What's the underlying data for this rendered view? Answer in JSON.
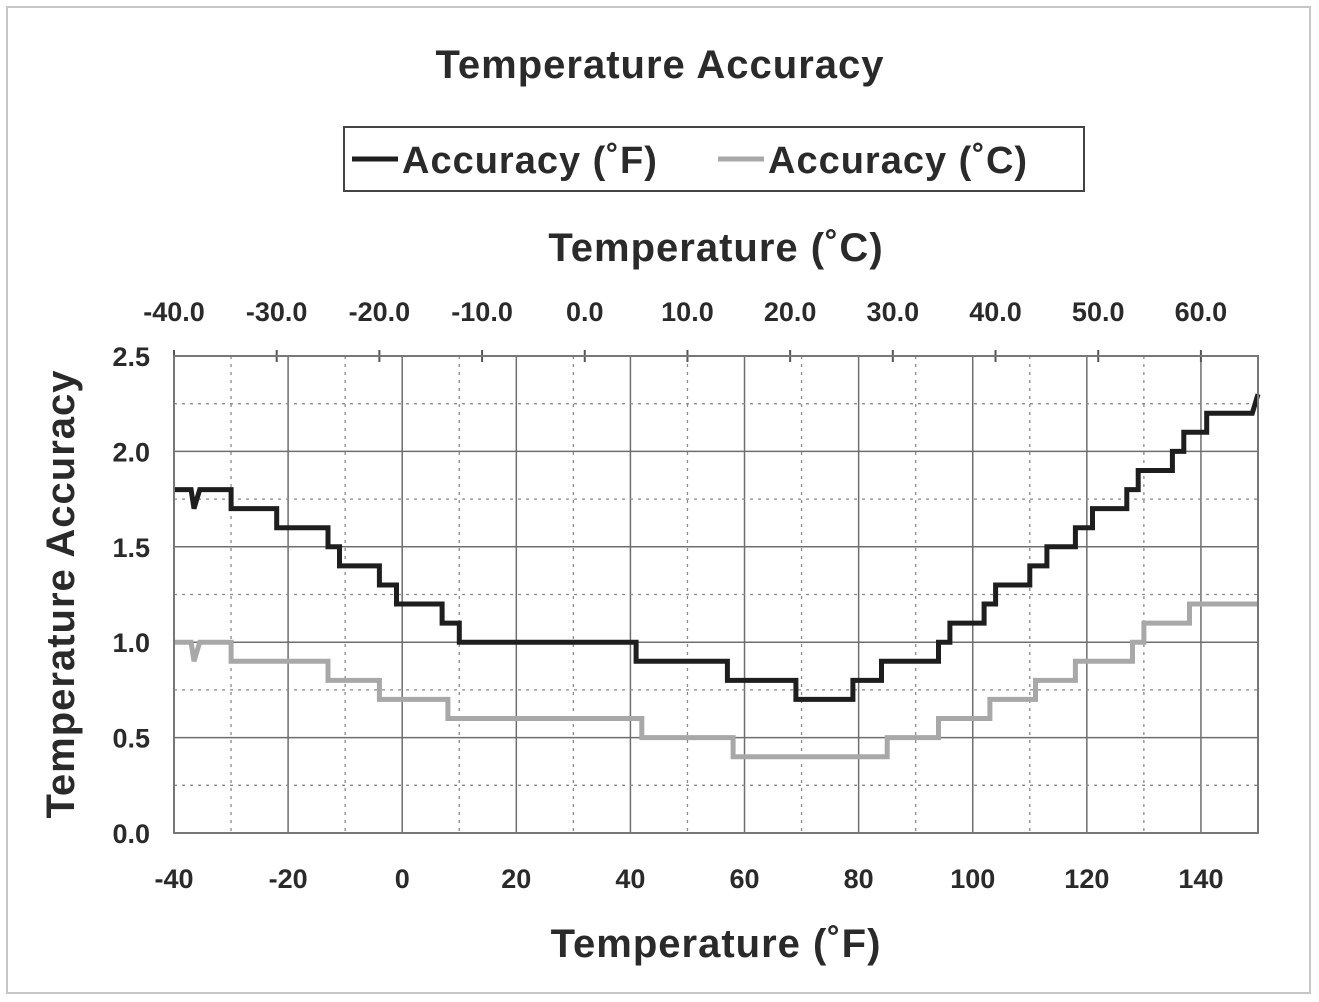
{
  "chart_data": {
    "type": "line",
    "title": "Temperature Accuracy",
    "xlabel": "Temperature (˚F)",
    "x2label": "Temperature (˚C)",
    "ylabel": "Temperature Accuracy",
    "xlim": [
      -40,
      150
    ],
    "ylim": [
      0,
      2.5
    ],
    "x2lim": [
      -40,
      65.56
    ],
    "xticks": [
      -40,
      -20,
      0,
      20,
      40,
      60,
      80,
      100,
      120,
      140
    ],
    "x2ticks": [
      -40,
      -30,
      -20,
      -10,
      0,
      10,
      20,
      30,
      40,
      50,
      60
    ],
    "yticks": [
      0,
      0.5,
      1.0,
      1.5,
      2.0,
      2.5
    ],
    "xtick_labels": [
      "-40",
      "-20",
      "0",
      "20",
      "40",
      "60",
      "80",
      "100",
      "120",
      "140"
    ],
    "x2tick_labels": [
      "-40.0",
      "-30.0",
      "-20.0",
      "-10.0",
      "0.0",
      "10.0",
      "20.0",
      "30.0",
      "40.0",
      "50.0",
      "60.0"
    ],
    "ytick_labels": [
      "0.0",
      "0.5",
      "1.0",
      "1.5",
      "2.0",
      "2.5"
    ],
    "grid": "major solid, minor dotted",
    "legend_position": "top",
    "series": [
      {
        "name": "Accuracy (˚F)",
        "color": "#1e1e1e",
        "points": [
          [
            -40,
            1.8
          ],
          [
            -37,
            1.8
          ],
          [
            -36.5,
            1.7
          ],
          [
            -35.5,
            1.8
          ],
          [
            -30,
            1.8
          ],
          [
            -30,
            1.7
          ],
          [
            -22,
            1.7
          ],
          [
            -22,
            1.6
          ],
          [
            -13,
            1.6
          ],
          [
            -13,
            1.5
          ],
          [
            -11,
            1.5
          ],
          [
            -11,
            1.4
          ],
          [
            -4,
            1.4
          ],
          [
            -4,
            1.3
          ],
          [
            -1,
            1.3
          ],
          [
            -1,
            1.2
          ],
          [
            7,
            1.2
          ],
          [
            7,
            1.1
          ],
          [
            10,
            1.1
          ],
          [
            10,
            1.0
          ],
          [
            41,
            1.0
          ],
          [
            41,
            0.9
          ],
          [
            57,
            0.9
          ],
          [
            57,
            0.8
          ],
          [
            69,
            0.8
          ],
          [
            69,
            0.7
          ],
          [
            79,
            0.7
          ],
          [
            79,
            0.8
          ],
          [
            84,
            0.8
          ],
          [
            84,
            0.9
          ],
          [
            94,
            0.9
          ],
          [
            94,
            1.0
          ],
          [
            96,
            1.0
          ],
          [
            96,
            1.1
          ],
          [
            102,
            1.1
          ],
          [
            102,
            1.2
          ],
          [
            104,
            1.2
          ],
          [
            104,
            1.3
          ],
          [
            110,
            1.3
          ],
          [
            110,
            1.4
          ],
          [
            113,
            1.4
          ],
          [
            113,
            1.5
          ],
          [
            118,
            1.5
          ],
          [
            118,
            1.6
          ],
          [
            121,
            1.6
          ],
          [
            121,
            1.7
          ],
          [
            127,
            1.7
          ],
          [
            127,
            1.8
          ],
          [
            129,
            1.8
          ],
          [
            129,
            1.9
          ],
          [
            135,
            1.9
          ],
          [
            135,
            2.0
          ],
          [
            137,
            2.0
          ],
          [
            137,
            2.1
          ],
          [
            141,
            2.1
          ],
          [
            141,
            2.2
          ],
          [
            149,
            2.2
          ],
          [
            150,
            2.3
          ]
        ]
      },
      {
        "name": "Accuracy (˚C)",
        "color": "#a8a8a8",
        "points": [
          [
            -40,
            1.0
          ],
          [
            -37,
            1.0
          ],
          [
            -36.5,
            0.9
          ],
          [
            -35.5,
            1.0
          ],
          [
            -30,
            1.0
          ],
          [
            -30,
            0.9
          ],
          [
            -13,
            0.9
          ],
          [
            -13,
            0.8
          ],
          [
            -4,
            0.8
          ],
          [
            -4,
            0.7
          ],
          [
            8,
            0.7
          ],
          [
            8,
            0.6
          ],
          [
            42,
            0.6
          ],
          [
            42,
            0.5
          ],
          [
            58,
            0.5
          ],
          [
            58,
            0.4
          ],
          [
            85,
            0.4
          ],
          [
            85,
            0.5
          ],
          [
            94,
            0.5
          ],
          [
            94,
            0.6
          ],
          [
            103,
            0.6
          ],
          [
            103,
            0.7
          ],
          [
            111,
            0.7
          ],
          [
            111,
            0.8
          ],
          [
            118,
            0.8
          ],
          [
            118,
            0.9
          ],
          [
            128,
            0.9
          ],
          [
            128,
            1.0
          ],
          [
            130,
            1.0
          ],
          [
            130,
            1.1
          ],
          [
            138,
            1.1
          ],
          [
            138,
            1.2
          ],
          [
            150,
            1.2
          ]
        ]
      }
    ]
  }
}
